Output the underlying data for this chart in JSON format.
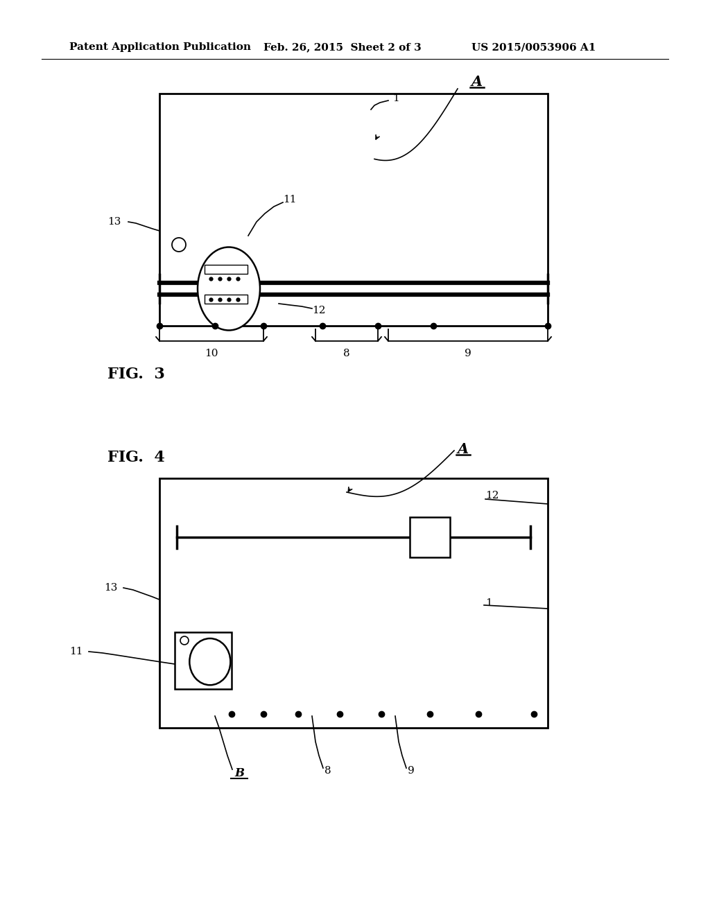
{
  "bg_color": "#ffffff",
  "header_left": "Patent Application Publication",
  "header_mid": "Feb. 26, 2015  Sheet 2 of 3",
  "header_right": "US 2015/0053906 A1",
  "fig3_title": "FIG.  3",
  "fig4_title": "FIG.  4",
  "lbl_A": "A",
  "lbl_B": "B",
  "lbl_1": "1",
  "lbl_8": "8",
  "lbl_9": "9",
  "lbl_10": "10",
  "lbl_11": "11",
  "lbl_12": "12",
  "lbl_13": "13"
}
